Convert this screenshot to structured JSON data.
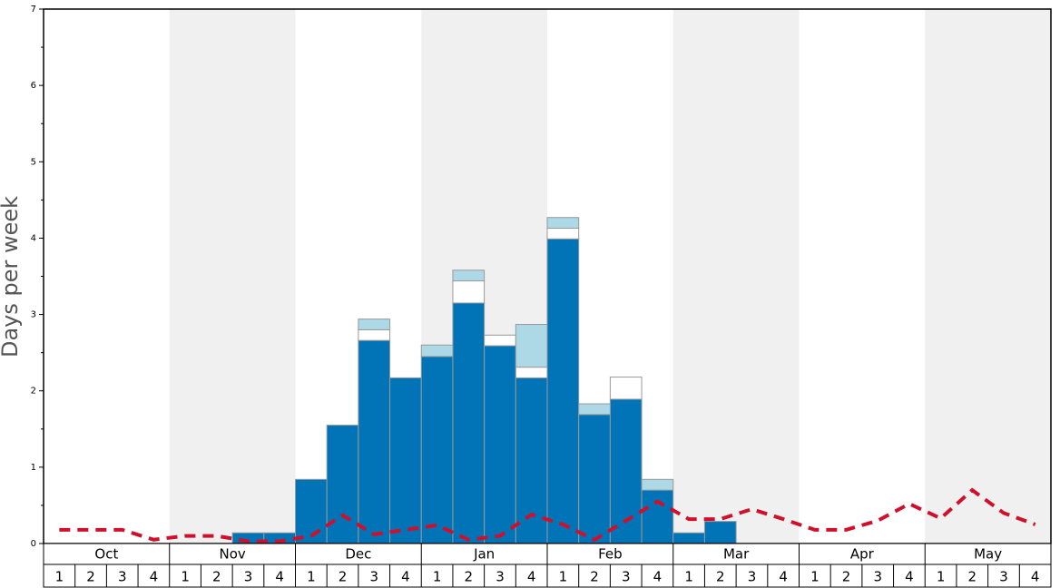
{
  "chart_data": {
    "type": "bar",
    "y_label": "Days per week",
    "months": [
      "Oct",
      "Nov",
      "Dec",
      "Jan",
      "Feb",
      "Mar",
      "Apr",
      "May"
    ],
    "categories": [
      "1",
      "2",
      "3",
      "4",
      "1",
      "2",
      "3",
      "4",
      "1",
      "2",
      "3",
      "4",
      "1",
      "2",
      "3",
      "4",
      "1",
      "2",
      "3",
      "4",
      "1",
      "2",
      "3",
      "4",
      "1",
      "2",
      "3",
      "4",
      "1",
      "2",
      "3",
      "4"
    ],
    "ylim": [
      0,
      7
    ],
    "yticks": [
      0,
      1,
      2,
      3,
      4,
      5,
      6,
      7
    ],
    "yminorticks": [
      0.5,
      1.5,
      2.5,
      3.5,
      4.5,
      5.5,
      6.5
    ],
    "series": [
      {
        "color": "#0074b7",
        "values": [
          null,
          null,
          null,
          null,
          null,
          null,
          0.14,
          0.14,
          0.84,
          1.55,
          2.66,
          2.17,
          2.45,
          3.15,
          2.59,
          2.17,
          3.99,
          1.69,
          1.89,
          0.7,
          0.14,
          0.29,
          null,
          null,
          null,
          null,
          null,
          null,
          null,
          null,
          null,
          null
        ]
      },
      {
        "color": "#ffffff",
        "values": [
          null,
          null,
          null,
          null,
          null,
          null,
          null,
          null,
          null,
          null,
          0.14,
          null,
          null,
          0.29,
          0.14,
          0.14,
          0.14,
          null,
          0.29,
          null,
          null,
          null,
          null,
          null,
          null,
          null,
          null,
          null,
          null,
          null,
          null,
          null
        ]
      },
      {
        "color": "#add8e6",
        "values": [
          null,
          null,
          null,
          null,
          null,
          null,
          null,
          null,
          null,
          null,
          0.14,
          null,
          0.15,
          0.14,
          null,
          0.56,
          0.14,
          0.14,
          null,
          0.14,
          null,
          null,
          null,
          null,
          null,
          null,
          null,
          null,
          null,
          null,
          null,
          null
        ]
      },
      {
        "type": "line",
        "color": "#d0102a",
        "values": [
          0.18,
          0.18,
          0.18,
          0.05,
          0.1,
          0.1,
          0.03,
          0.03,
          0.1,
          0.37,
          0.12,
          0.18,
          0.24,
          0.05,
          0.1,
          0.38,
          0.25,
          0.05,
          0.3,
          0.55,
          0.32,
          0.32,
          0.45,
          0.32,
          0.18,
          0.18,
          0.3,
          0.52,
          0.33,
          0.7,
          0.4,
          0.25
        ]
      }
    ]
  }
}
